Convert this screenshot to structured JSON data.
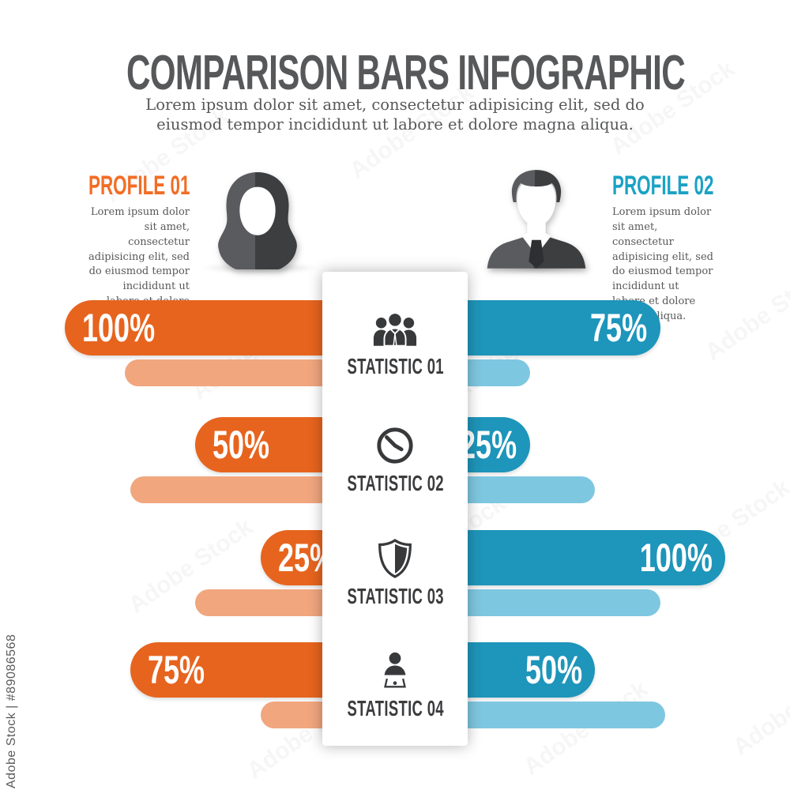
{
  "header": {
    "title": "COMPARISON BARS INFOGRAPHIC",
    "subtitle": "Lorem ipsum dolor sit amet, consectetur adipisicing elit, sed do eiusmod tempor incididunt ut labore et dolore magna aliqua."
  },
  "profiles": [
    {
      "label": "PROFILE 01",
      "accent_color": "#F26D25",
      "description": "Lorem ipsum dolor sit amet, consectetur adipisicing elit, sed do eiusmod tempor incididunt ut labore et dolore magna aliqua.",
      "avatar": "female-avatar"
    },
    {
      "label": "PROFILE 02",
      "accent_color": "#1BA2C4",
      "description": "Lorem ipsum dolor sit amet, consectetur adipisicing elit, sed do eiusmod tempor incididunt ut labore et dolore magna aliqua.",
      "avatar": "male-avatar"
    }
  ],
  "chart_data": {
    "type": "bar",
    "orientation": "horizontal-mirrored",
    "categories": [
      "STATISTIC 01",
      "STATISTIC 02",
      "STATISTIC 03",
      "STATISTIC 04"
    ],
    "category_icons": [
      "people-group-icon",
      "clock-icon",
      "shield-icon",
      "person-laptop-icon"
    ],
    "value_range": [
      0,
      100
    ],
    "series": [
      {
        "name": "Profile 01",
        "side": "left",
        "color": "#E7641E",
        "secondary_color": "#F1A67E",
        "values": [
          100,
          50,
          25,
          75
        ],
        "value_labels": [
          "100%",
          "50%",
          "25%",
          "75%"
        ],
        "secondary_values": [
          77,
          75,
          50,
          25
        ]
      },
      {
        "name": "Profile 02",
        "side": "right",
        "color": "#1E95BA",
        "secondary_color": "#7EC7E0",
        "values": [
          75,
          25,
          100,
          50
        ],
        "value_labels": [
          "75%",
          "25%",
          "100%",
          "50%"
        ],
        "secondary_values": [
          25,
          50,
          75,
          77
        ]
      }
    ]
  },
  "watermark": {
    "edge_label": "Adobe Stock | #89086568",
    "pattern_text": "Adobe Stock"
  }
}
